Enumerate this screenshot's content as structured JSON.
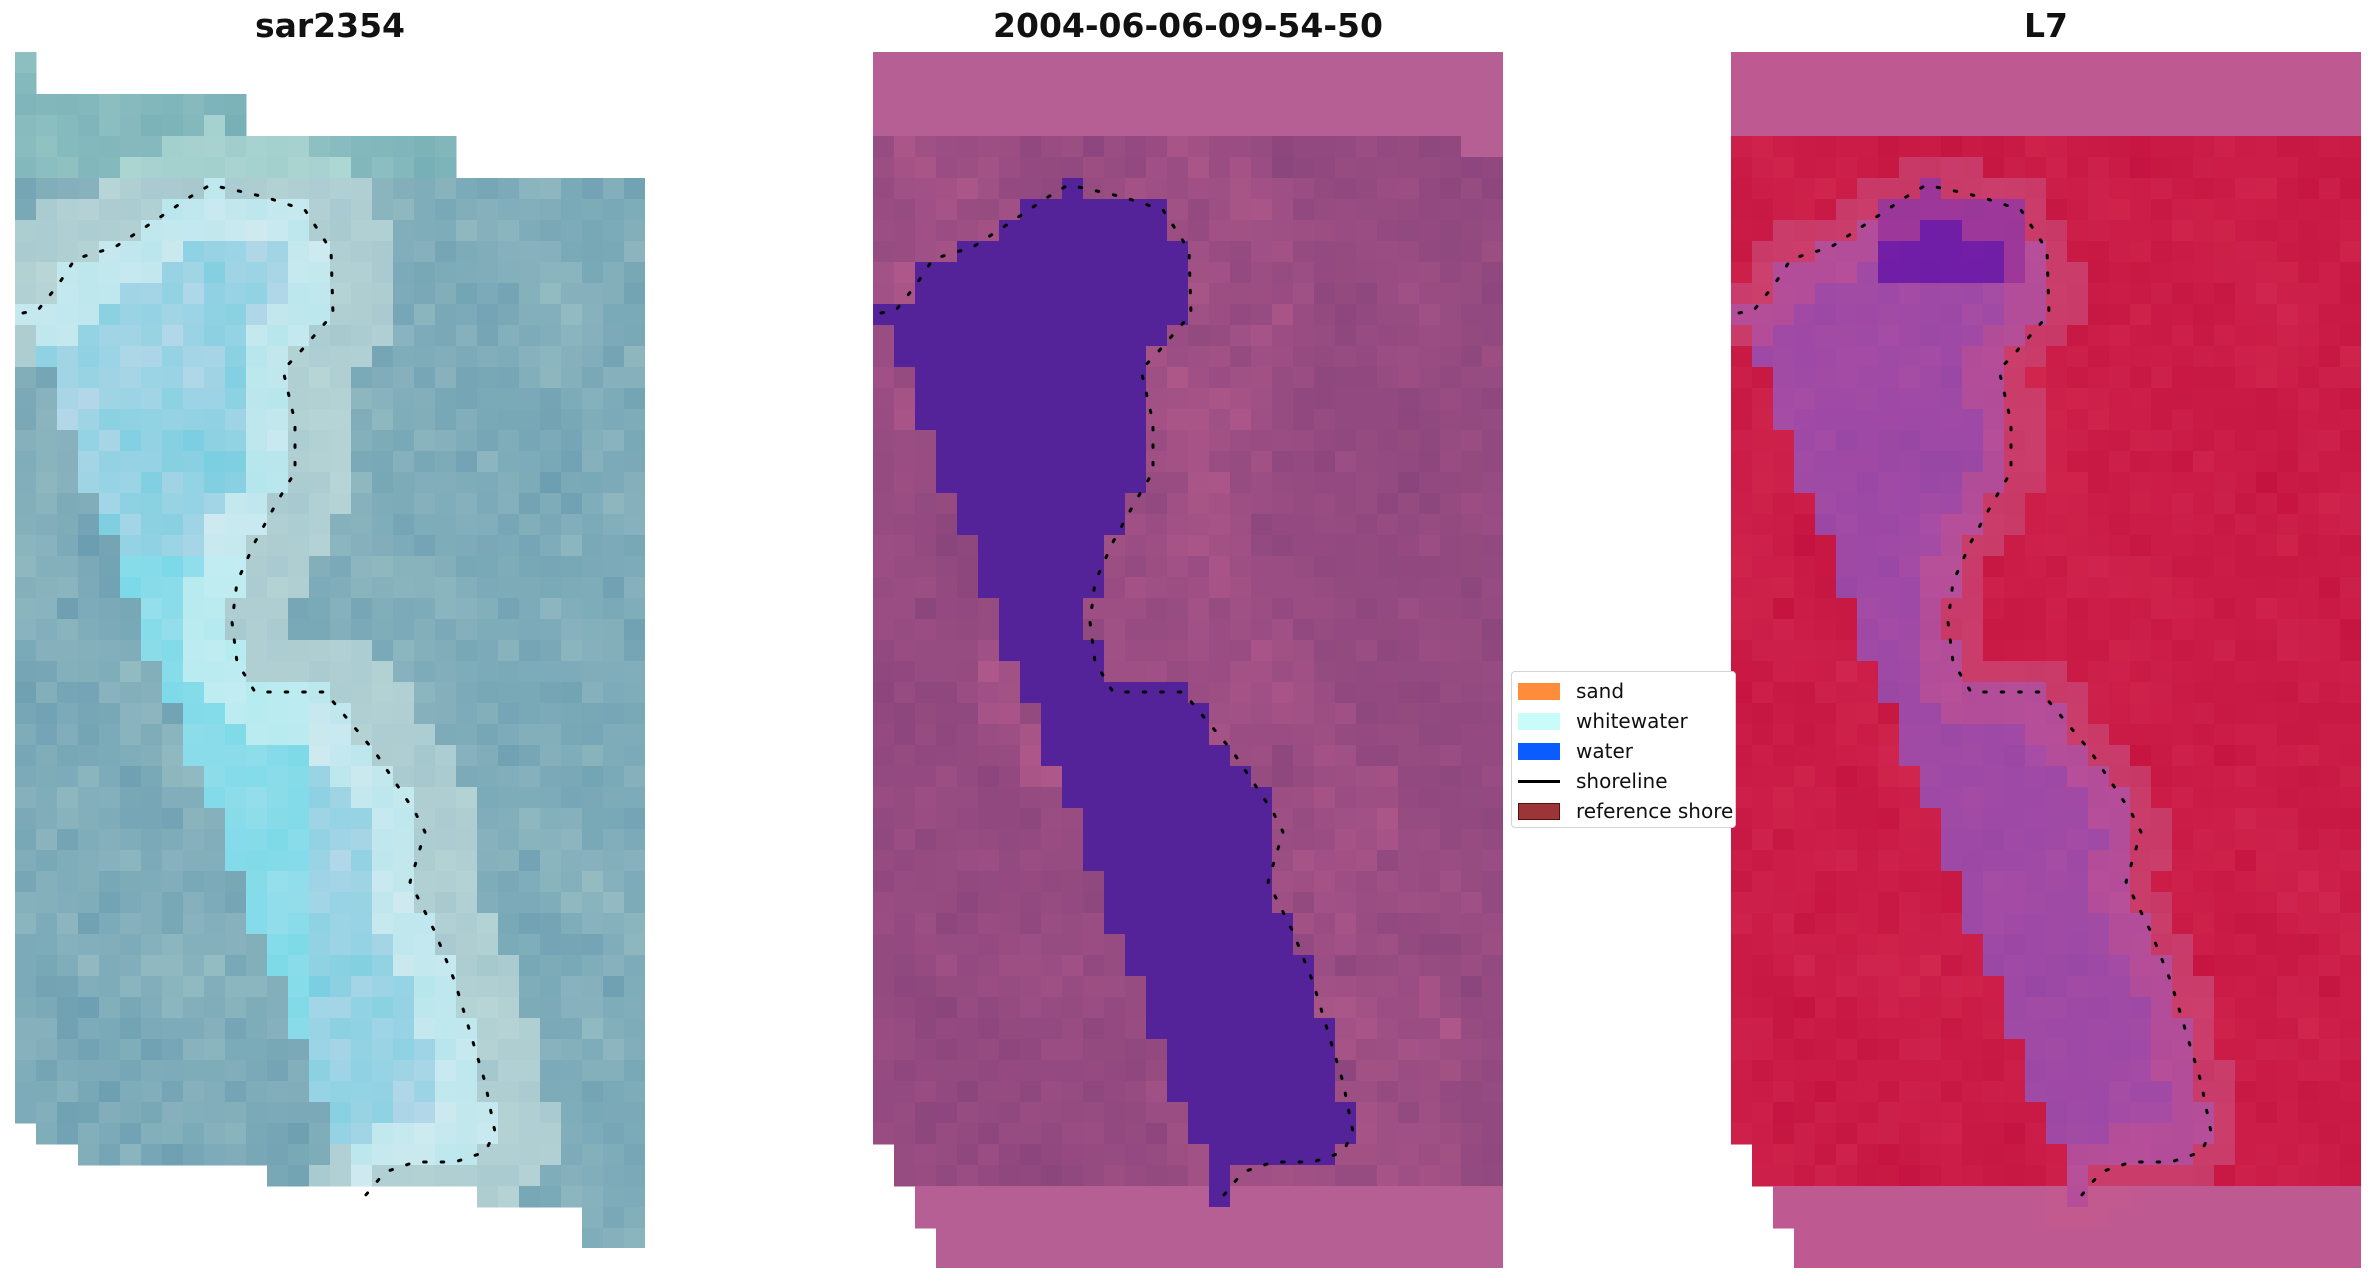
{
  "panels": [
    {
      "title": "sar2354",
      "palette": "rgb"
    },
    {
      "title": "2004-06-06-09-54-50",
      "palette": "classified"
    },
    {
      "title": "L7",
      "palette": "index"
    }
  ],
  "legend": {
    "items": [
      {
        "label": "sand",
        "color": "#ff8c3a",
        "kind": "patch"
      },
      {
        "label": "whitewater",
        "color": "#c9fbfb",
        "kind": "patch"
      },
      {
        "label": "water",
        "color": "#0a5cff",
        "kind": "patch"
      },
      {
        "label": "shoreline",
        "color": "#000000",
        "kind": "line"
      },
      {
        "label": "reference shoreline",
        "color": "#9b3537",
        "kind": "patch-edged"
      }
    ]
  },
  "colors": {
    "water_class": "#54239a",
    "land_class": "#b65d91",
    "index_high": "#c4113e",
    "index_low": "#5c0aa8",
    "rgb_light": "#e9fbf6",
    "rgb_teal": "#6fa3b3"
  }
}
